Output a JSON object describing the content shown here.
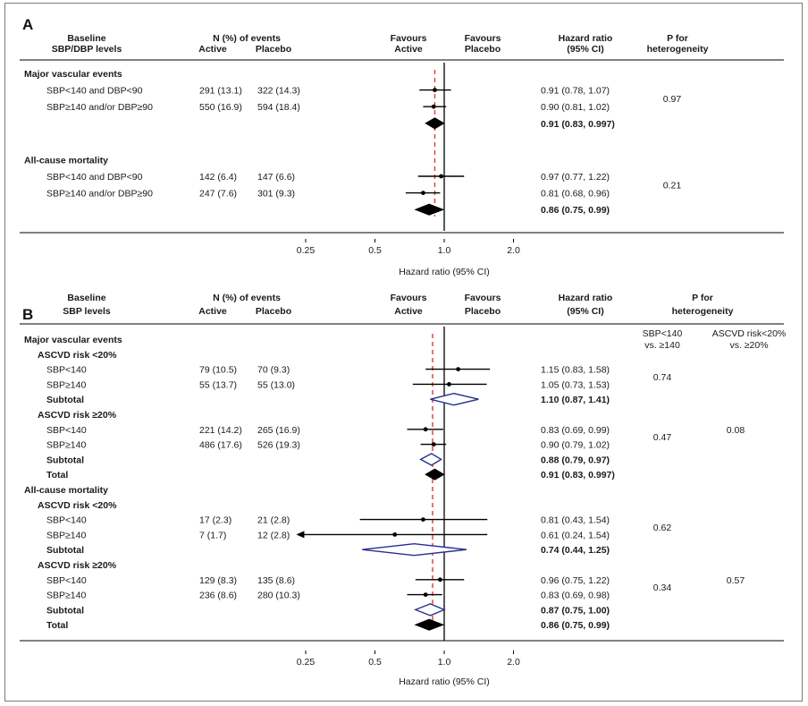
{
  "chart_data": [
    {
      "type": "forest",
      "panel_label": "A",
      "headers": {
        "baseline": "Baseline",
        "baseline2": "SBP/DBP levels",
        "n_events": "N (%)  of events",
        "active": "Active",
        "placebo": "Placebo",
        "favours_active_1": "Favours",
        "favours_active_2": "Active",
        "favours_placebo_1": "Favours",
        "favours_placebo_2": "Placebo",
        "hr": "Hazard ratio",
        "hr_ci": "(95% CI)",
        "p1": "P for",
        "p2": "heterogeneity"
      },
      "xlabel": "Hazard ratio (95% CI)",
      "xscale": "log",
      "xticks": [
        0.25,
        0.5,
        1.0,
        2.0
      ],
      "xtick_labels": [
        "0.25",
        "0.5",
        "1.0",
        "2.0"
      ],
      "reference_line": 1.0,
      "dashed_line": 0.91,
      "rows": [
        {
          "kind": "group",
          "label": "Major vascular events"
        },
        {
          "kind": "est",
          "label": "SBP<140 and DBP<90",
          "active": "291 (13.1)",
          "placebo": "322 (14.3)",
          "hr": 0.91,
          "lo": 0.78,
          "hi": 1.07,
          "text": "0.91 (0.78, 1.07)"
        },
        {
          "kind": "est",
          "label": "SBP≥140 and/or DBP≥90",
          "active": "550 (16.9)",
          "placebo": "594 (18.4)",
          "hr": 0.9,
          "lo": 0.81,
          "hi": 1.02,
          "text": "0.90 (0.81, 1.02)"
        },
        {
          "kind": "pooled",
          "label": "",
          "hr": 0.91,
          "lo": 0.83,
          "hi": 0.997,
          "text": "0.91 (0.83, 0.997)",
          "filled": true
        },
        {
          "kind": "gap"
        },
        {
          "kind": "group",
          "label": "All-cause mortality"
        },
        {
          "kind": "est",
          "label": "SBP<140 and DBP<90",
          "active": "142 (6.4)",
          "placebo": "147 (6.6)",
          "hr": 0.97,
          "lo": 0.77,
          "hi": 1.22,
          "text": "0.97 (0.77, 1.22)"
        },
        {
          "kind": "est",
          "label": "SBP≥140 and/or DBP≥90",
          "active": "247 (7.6)",
          "placebo": "301 (9.3)",
          "hr": 0.81,
          "lo": 0.68,
          "hi": 0.96,
          "text": "0.81 (0.68, 0.96)"
        },
        {
          "kind": "pooled",
          "label": "",
          "hr": 0.86,
          "lo": 0.75,
          "hi": 0.99,
          "text": "0.86 (0.75, 0.99)",
          "filled": true
        }
      ],
      "p_values": [
        {
          "text": "0.97",
          "rows": [
            1,
            2
          ]
        },
        {
          "text": "0.21",
          "rows": [
            6,
            7
          ]
        }
      ]
    },
    {
      "type": "forest",
      "panel_label": "B",
      "headers": {
        "baseline": "Baseline",
        "baseline2": "SBP levels",
        "n_events": "N (%)  of events",
        "active": "Active",
        "placebo": "Placebo",
        "favours_active_1": "Favours",
        "favours_active_2": "Active",
        "favours_placebo_1": "Favours",
        "favours_placebo_2": "Placebo",
        "hr": "Hazard ratio",
        "hr_ci": "(95% CI)",
        "p1": "P for",
        "p2": "heterogeneity",
        "sub_p1a": "SBP<140",
        "sub_p1b": "vs. ≥140",
        "sub_p2a": "ASCVD risk<20%",
        "sub_p2b": "vs. ≥20%"
      },
      "xlabel": "Hazard ratio (95% CI)",
      "xscale": "log",
      "xticks": [
        0.25,
        0.5,
        1.0,
        2.0
      ],
      "xtick_labels": [
        "0.25",
        "0.5",
        "1.0",
        "2.0"
      ],
      "reference_line": 1.0,
      "dashed_line": 0.89,
      "rows": [
        {
          "kind": "group",
          "label": "Major vascular events"
        },
        {
          "kind": "subgroup",
          "label": "ASCVD risk <20%"
        },
        {
          "kind": "est",
          "label": "SBP<140",
          "active": "79 (10.5)",
          "placebo": "70 (9.3)",
          "hr": 1.15,
          "lo": 0.83,
          "hi": 1.58,
          "text": "1.15 (0.83, 1.58)"
        },
        {
          "kind": "est",
          "label": "SBP≥140",
          "active": "55 (13.7)",
          "placebo": "55 (13.0)",
          "hr": 1.05,
          "lo": 0.73,
          "hi": 1.53,
          "text": "1.05 (0.73, 1.53)"
        },
        {
          "kind": "pooled",
          "label": "Subtotal",
          "hr": 1.1,
          "lo": 0.87,
          "hi": 1.41,
          "text": "1.10 (0.87, 1.41)",
          "filled": false
        },
        {
          "kind": "subgroup",
          "label": "ASCVD risk ≥20%"
        },
        {
          "kind": "est",
          "label": "SBP<140",
          "active": "221 (14.2)",
          "placebo": "265 (16.9)",
          "hr": 0.83,
          "lo": 0.69,
          "hi": 0.99,
          "text": "0.83 (0.69, 0.99)"
        },
        {
          "kind": "est",
          "label": "SBP≥140",
          "active": "486 (17.6)",
          "placebo": "526 (19.3)",
          "hr": 0.9,
          "lo": 0.79,
          "hi": 1.02,
          "text": "0.90 (0.79, 1.02)"
        },
        {
          "kind": "pooled",
          "label": "Subtotal",
          "hr": 0.88,
          "lo": 0.79,
          "hi": 0.97,
          "text": "0.88 (0.79, 0.97)",
          "filled": false
        },
        {
          "kind": "pooled",
          "label": "Total",
          "hr": 0.91,
          "lo": 0.83,
          "hi": 0.997,
          "text": "0.91 (0.83, 0.997)",
          "filled": true
        },
        {
          "kind": "group",
          "label": "All-cause mortality"
        },
        {
          "kind": "subgroup",
          "label": "ASCVD risk <20%"
        },
        {
          "kind": "est",
          "label": "SBP<140",
          "active": "17 (2.3)",
          "placebo": "21 (2.8)",
          "hr": 0.81,
          "lo": 0.43,
          "hi": 1.54,
          "text": "0.81 (0.43, 1.54)"
        },
        {
          "kind": "est",
          "label": "SBP≥140",
          "active": "7 (1.7)",
          "placebo": "12 (2.8)",
          "hr": 0.61,
          "lo": 0.24,
          "hi": 1.54,
          "text": "0.61 (0.24, 1.54)",
          "arrow_left": true
        },
        {
          "kind": "pooled",
          "label": "Subtotal",
          "hr": 0.74,
          "lo": 0.44,
          "hi": 1.25,
          "text": "0.74 (0.44, 1.25)",
          "filled": false
        },
        {
          "kind": "subgroup",
          "label": "ASCVD risk ≥20%"
        },
        {
          "kind": "est",
          "label": "SBP<140",
          "active": "129 (8.3)",
          "placebo": "135 (8.6)",
          "hr": 0.96,
          "lo": 0.75,
          "hi": 1.22,
          "text": "0.96 (0.75, 1.22)"
        },
        {
          "kind": "est",
          "label": "SBP≥140",
          "active": "236 (8.6)",
          "placebo": "280 (10.3)",
          "hr": 0.83,
          "lo": 0.69,
          "hi": 0.98,
          "text": "0.83 (0.69, 0.98)"
        },
        {
          "kind": "pooled",
          "label": "Subtotal",
          "hr": 0.87,
          "lo": 0.75,
          "hi": 1.0,
          "text": "0.87 (0.75, 1.00)",
          "filled": false
        },
        {
          "kind": "pooled",
          "label": "Total",
          "hr": 0.86,
          "lo": 0.75,
          "hi": 0.99,
          "text": "0.86 (0.75, 0.99)",
          "filled": true
        }
      ],
      "p_values": [
        {
          "text": "0.74",
          "rows": [
            2,
            3
          ],
          "column": "sbp"
        },
        {
          "text": "0.47",
          "rows": [
            6,
            7
          ],
          "column": "sbp"
        },
        {
          "text": "0.08",
          "rows": [
            4,
            8
          ],
          "column": "ascvd"
        },
        {
          "text": "0.62",
          "rows": [
            12,
            13
          ],
          "column": "sbp"
        },
        {
          "text": "0.34",
          "rows": [
            16,
            17
          ],
          "column": "sbp"
        },
        {
          "text": "0.57",
          "rows": [
            14,
            18
          ],
          "column": "ascvd"
        }
      ]
    }
  ],
  "colors": {
    "text": "#1a1a1a",
    "axis": "#000000",
    "dashed": "#e03a3a",
    "open_diamond": "#2a2f8f",
    "filled": "#000000",
    "frame": "#7a7a7a"
  }
}
